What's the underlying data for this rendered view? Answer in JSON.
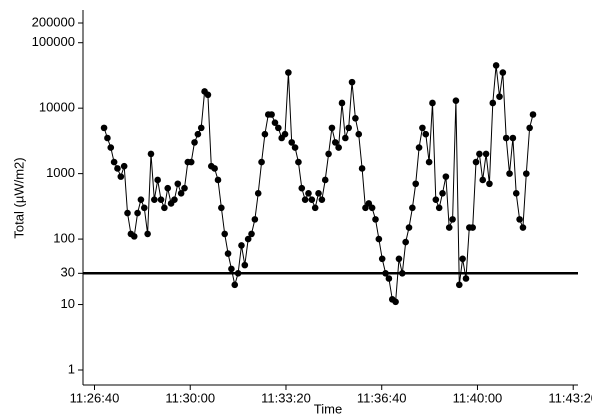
{
  "chart_data": {
    "type": "line",
    "x_label": "Time",
    "y_label": "Total (µW/m2)",
    "log_y": true,
    "color": "#000000",
    "hline": 30,
    "xlim": [
      "11:26:16",
      "11:43:30"
    ],
    "xticks": [
      "11:26:40",
      "11:30:00",
      "11:33:20",
      "11:36:40",
      "11:40:00",
      "11:43:20"
    ],
    "ylim": [
      0.59,
      316000
    ],
    "yticks": [
      1,
      10,
      30,
      100,
      1000,
      10000,
      100000,
      200000
    ],
    "x": [
      "11:27:00",
      "11:27:07",
      "11:27:14",
      "11:27:21",
      "11:27:28",
      "11:27:35",
      "11:27:42",
      "11:27:49",
      "11:27:56",
      "11:28:03",
      "11:28:10",
      "11:28:17",
      "11:28:24",
      "11:28:31",
      "11:28:38",
      "11:28:45",
      "11:28:52",
      "11:28:59",
      "11:29:06",
      "11:29:13",
      "11:29:20",
      "11:29:27",
      "11:29:34",
      "11:29:41",
      "11:29:48",
      "11:29:55",
      "11:30:02",
      "11:30:09",
      "11:30:16",
      "11:30:23",
      "11:30:30",
      "11:30:37",
      "11:30:44",
      "11:30:51",
      "11:30:58",
      "11:31:05",
      "11:31:12",
      "11:31:19",
      "11:31:26",
      "11:31:33",
      "11:31:40",
      "11:31:47",
      "11:31:54",
      "11:32:01",
      "11:32:08",
      "11:32:15",
      "11:32:22",
      "11:32:29",
      "11:32:36",
      "11:32:43",
      "11:32:50",
      "11:32:57",
      "11:33:04",
      "11:33:11",
      "11:33:18",
      "11:33:25",
      "11:33:32",
      "11:33:39",
      "11:33:46",
      "11:33:53",
      "11:34:00",
      "11:34:07",
      "11:34:14",
      "11:34:21",
      "11:34:28",
      "11:34:35",
      "11:34:42",
      "11:34:49",
      "11:34:56",
      "11:35:03",
      "11:35:10",
      "11:35:17",
      "11:35:24",
      "11:35:31",
      "11:35:38",
      "11:35:45",
      "11:35:52",
      "11:35:59",
      "11:36:06",
      "11:36:13",
      "11:36:20",
      "11:36:27",
      "11:36:34",
      "11:36:41",
      "11:36:48",
      "11:36:55",
      "11:37:02",
      "11:37:09",
      "11:37:16",
      "11:37:23",
      "11:37:30",
      "11:37:37",
      "11:37:44",
      "11:37:51",
      "11:37:58",
      "11:38:05",
      "11:38:12",
      "11:38:19",
      "11:38:26",
      "11:38:33",
      "11:38:40",
      "11:38:47",
      "11:38:54",
      "11:39:01",
      "11:39:08",
      "11:39:15",
      "11:39:22",
      "11:39:29",
      "11:39:36",
      "11:39:43",
      "11:39:50",
      "11:39:57",
      "11:40:04",
      "11:40:11",
      "11:40:18",
      "11:40:25",
      "11:40:32",
      "11:40:39",
      "11:40:46",
      "11:40:53",
      "11:41:00",
      "11:41:07",
      "11:41:14",
      "11:41:21",
      "11:41:28",
      "11:41:35",
      "11:41:42",
      "11:41:49",
      "11:41:56"
    ],
    "values": [
      5000,
      3500,
      2500,
      1500,
      1200,
      900,
      1300,
      250,
      120,
      110,
      250,
      400,
      300,
      120,
      2000,
      400,
      800,
      400,
      300,
      600,
      350,
      400,
      700,
      500,
      600,
      1500,
      1500,
      3000,
      4000,
      5000,
      18000,
      16000,
      1300,
      1200,
      800,
      300,
      120,
      60,
      35,
      20,
      30,
      80,
      40,
      100,
      120,
      200,
      500,
      1500,
      4000,
      8000,
      8000,
      6000,
      5000,
      3500,
      4000,
      35000,
      3000,
      2500,
      1500,
      600,
      400,
      500,
      400,
      300,
      500,
      400,
      800,
      2000,
      5000,
      3000,
      2500,
      12000,
      3500,
      5000,
      25000,
      7000,
      4000,
      1200,
      300,
      350,
      300,
      200,
      100,
      50,
      30,
      25,
      12,
      11,
      50,
      30,
      90,
      150,
      300,
      700,
      2500,
      5000,
      4000,
      1500,
      12000,
      400,
      300,
      500,
      900,
      150,
      200,
      13000,
      20,
      50,
      25,
      150,
      150,
      1500,
      2000,
      800,
      2000,
      700,
      12000,
      45000,
      15000,
      35000,
      3500,
      1000,
      3500,
      500,
      200,
      150,
      1000,
      5000,
      8000
    ]
  }
}
